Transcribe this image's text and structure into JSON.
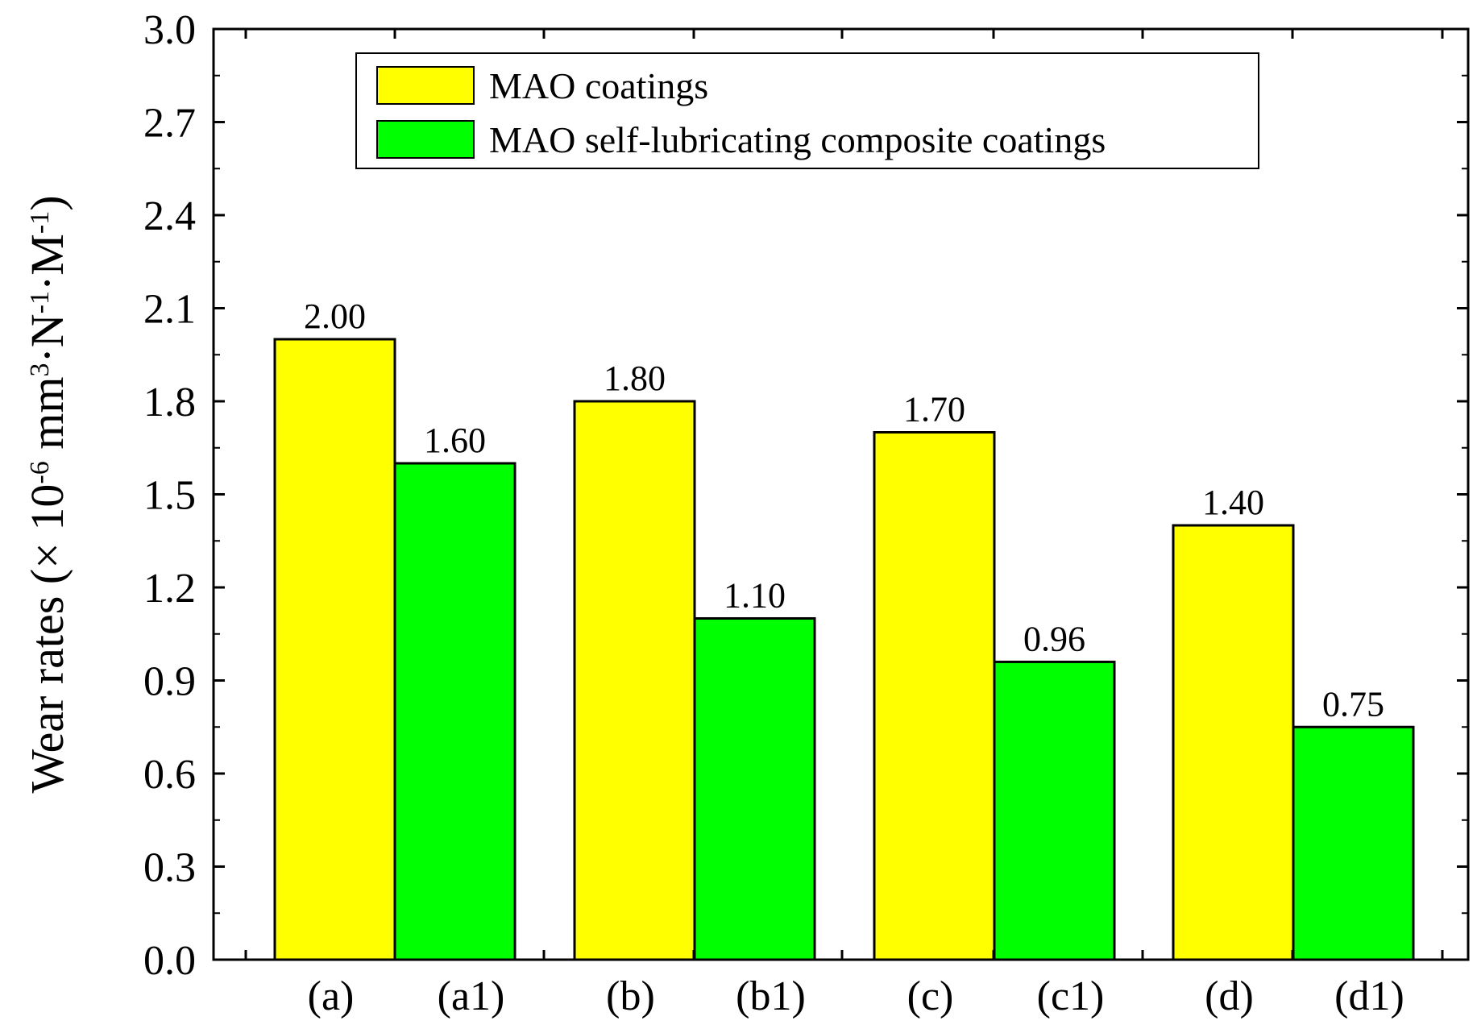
{
  "chart_data": {
    "type": "bar",
    "title": "",
    "xlabel": "",
    "ylabel": {
      "prefix": "Wear rates (× 10",
      "exp1": "-6",
      "mid1": " mm",
      "exp2": "3",
      "mid2": "·N",
      "exp3": "-1",
      "mid3": "·M",
      "exp4": "-1",
      "suffix": ")"
    },
    "ylim": [
      0.0,
      3.0
    ],
    "yticks": [
      "0.0",
      "0.3",
      "0.6",
      "0.9",
      "1.2",
      "1.5",
      "1.8",
      "2.1",
      "2.4",
      "2.7",
      "3.0"
    ],
    "grid": false,
    "legend_position": "top",
    "groups": [
      {
        "labels": [
          "(a)",
          "(a1)"
        ],
        "values": [
          2.0,
          1.6
        ],
        "value_labels": [
          "2.00",
          "1.60"
        ]
      },
      {
        "labels": [
          "(b)",
          "(b1)"
        ],
        "values": [
          1.8,
          1.1
        ],
        "value_labels": [
          "1.80",
          "1.10"
        ]
      },
      {
        "labels": [
          "(c)",
          "(c1)"
        ],
        "values": [
          1.7,
          0.96
        ],
        "value_labels": [
          "1.70",
          "0.96"
        ]
      },
      {
        "labels": [
          "(d)",
          "(d1)"
        ],
        "values": [
          1.4,
          0.75
        ],
        "value_labels": [
          "1.40",
          "0.75"
        ]
      }
    ],
    "series": [
      {
        "name": "MAO coatings",
        "color": "#ffff00"
      },
      {
        "name": "MAO self-lubricating composite coatings",
        "color": "#00ff00"
      }
    ]
  }
}
